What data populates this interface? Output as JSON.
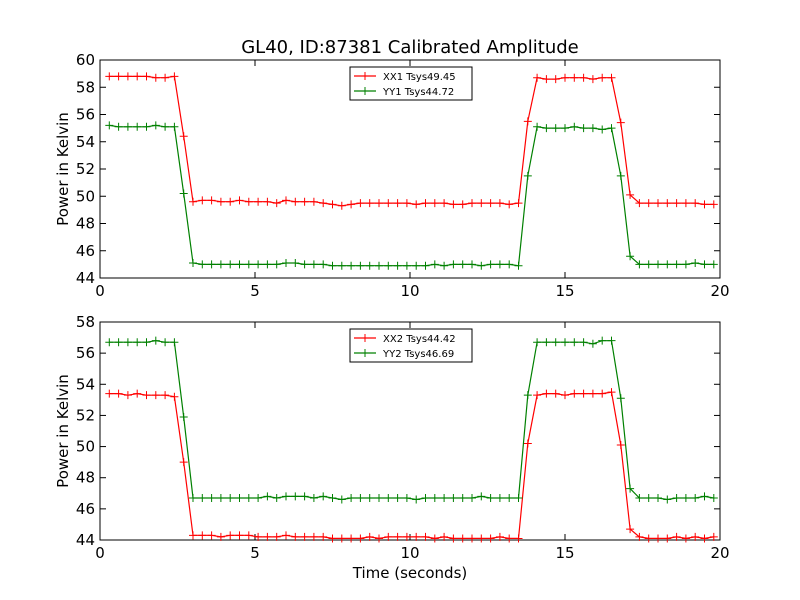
{
  "figure": {
    "title": "GL40, ID:87381 Calibrated Amplitude",
    "xlabel": "Time (seconds)"
  },
  "chart_data": [
    {
      "type": "line",
      "title": "GL40, ID:87381 Calibrated Amplitude",
      "xlabel": "",
      "ylabel": "Power in Kelvin",
      "xlim": [
        0,
        20
      ],
      "ylim": [
        44,
        60
      ],
      "xticks": [
        0,
        5,
        10,
        15,
        20
      ],
      "yticks": [
        44,
        46,
        48,
        50,
        52,
        54,
        56,
        58,
        60
      ],
      "grid": false,
      "legend_position": "top-center",
      "x": [
        0.3,
        0.6,
        0.9,
        1.2,
        1.5,
        1.8,
        2.1,
        2.4,
        2.7,
        3.0,
        3.3,
        3.6,
        3.9,
        4.2,
        4.5,
        4.8,
        5.1,
        5.4,
        5.7,
        6.0,
        6.3,
        6.6,
        6.9,
        7.2,
        7.5,
        7.8,
        8.1,
        8.4,
        8.7,
        9.0,
        9.3,
        9.6,
        9.9,
        10.2,
        10.5,
        10.8,
        11.1,
        11.4,
        11.7,
        12.0,
        12.3,
        12.6,
        12.9,
        13.2,
        13.5,
        13.8,
        14.1,
        14.4,
        14.7,
        15.0,
        15.3,
        15.6,
        15.9,
        16.2,
        16.5,
        16.8,
        17.1,
        17.4,
        17.7,
        18.0,
        18.3,
        18.6,
        18.9,
        19.2,
        19.5,
        19.8
      ],
      "series": [
        {
          "name": "XX1 Tsys49.45",
          "color": "#ff0000",
          "values": [
            58.8,
            58.8,
            58.8,
            58.8,
            58.8,
            58.7,
            58.7,
            58.8,
            54.4,
            49.6,
            49.7,
            49.7,
            49.6,
            49.6,
            49.7,
            49.6,
            49.6,
            49.6,
            49.5,
            49.7,
            49.6,
            49.6,
            49.6,
            49.5,
            49.4,
            49.3,
            49.4,
            49.5,
            49.5,
            49.5,
            49.5,
            49.5,
            49.5,
            49.4,
            49.5,
            49.5,
            49.5,
            49.4,
            49.4,
            49.5,
            49.5,
            49.5,
            49.5,
            49.4,
            49.5,
            55.5,
            58.7,
            58.6,
            58.6,
            58.7,
            58.7,
            58.7,
            58.6,
            58.7,
            58.7,
            55.4,
            50.1,
            49.5,
            49.5,
            49.5,
            49.5,
            49.5,
            49.5,
            49.5,
            49.4,
            49.4
          ]
        },
        {
          "name": "YY1 Tsys44.72",
          "color": "#008000",
          "values": [
            55.2,
            55.1,
            55.1,
            55.1,
            55.1,
            55.2,
            55.1,
            55.1,
            50.2,
            45.1,
            45.0,
            45.0,
            45.0,
            45.0,
            45.0,
            45.0,
            45.0,
            45.0,
            45.0,
            45.1,
            45.1,
            45.0,
            45.0,
            45.0,
            44.9,
            44.9,
            44.9,
            44.9,
            44.9,
            44.9,
            44.9,
            44.9,
            44.9,
            44.9,
            44.9,
            45.0,
            44.9,
            45.0,
            45.0,
            45.0,
            44.9,
            45.0,
            45.0,
            45.0,
            44.9,
            51.5,
            55.1,
            55.0,
            55.0,
            55.0,
            55.1,
            55.0,
            55.0,
            54.9,
            55.0,
            51.5,
            45.6,
            45.0,
            45.0,
            45.0,
            45.0,
            45.0,
            45.0,
            45.1,
            45.0,
            45.0
          ]
        }
      ]
    },
    {
      "type": "line",
      "title": "",
      "xlabel": "Time (seconds)",
      "ylabel": "Power in Kelvin",
      "xlim": [
        0,
        20
      ],
      "ylim": [
        44,
        58
      ],
      "xticks": [
        0,
        5,
        10,
        15,
        20
      ],
      "yticks": [
        44,
        46,
        48,
        50,
        52,
        54,
        56,
        58
      ],
      "grid": false,
      "legend_position": "top-center",
      "x": [
        0.3,
        0.6,
        0.9,
        1.2,
        1.5,
        1.8,
        2.1,
        2.4,
        2.7,
        3.0,
        3.3,
        3.6,
        3.9,
        4.2,
        4.5,
        4.8,
        5.1,
        5.4,
        5.7,
        6.0,
        6.3,
        6.6,
        6.9,
        7.2,
        7.5,
        7.8,
        8.1,
        8.4,
        8.7,
        9.0,
        9.3,
        9.6,
        9.9,
        10.2,
        10.5,
        10.8,
        11.1,
        11.4,
        11.7,
        12.0,
        12.3,
        12.6,
        12.9,
        13.2,
        13.5,
        13.8,
        14.1,
        14.4,
        14.7,
        15.0,
        15.3,
        15.6,
        15.9,
        16.2,
        16.5,
        16.8,
        17.1,
        17.4,
        17.7,
        18.0,
        18.3,
        18.6,
        18.9,
        19.2,
        19.5,
        19.8
      ],
      "series": [
        {
          "name": "XX2 Tsys44.42",
          "color": "#ff0000",
          "values": [
            53.4,
            53.4,
            53.3,
            53.4,
            53.3,
            53.3,
            53.3,
            53.2,
            49.0,
            44.3,
            44.3,
            44.3,
            44.2,
            44.3,
            44.3,
            44.3,
            44.2,
            44.2,
            44.2,
            44.3,
            44.2,
            44.2,
            44.2,
            44.2,
            44.1,
            44.1,
            44.1,
            44.1,
            44.2,
            44.1,
            44.2,
            44.2,
            44.2,
            44.2,
            44.2,
            44.1,
            44.2,
            44.1,
            44.1,
            44.1,
            44.1,
            44.1,
            44.2,
            44.1,
            44.1,
            50.2,
            53.3,
            53.4,
            53.4,
            53.3,
            53.4,
            53.4,
            53.4,
            53.4,
            53.5,
            50.1,
            44.7,
            44.2,
            44.1,
            44.1,
            44.1,
            44.2,
            44.1,
            44.2,
            44.1,
            44.2
          ]
        },
        {
          "name": "YY2 Tsys46.69",
          "color": "#008000",
          "values": [
            56.7,
            56.7,
            56.7,
            56.7,
            56.7,
            56.8,
            56.7,
            56.7,
            51.9,
            46.7,
            46.7,
            46.7,
            46.7,
            46.7,
            46.7,
            46.7,
            46.7,
            46.8,
            46.7,
            46.8,
            46.8,
            46.8,
            46.7,
            46.8,
            46.7,
            46.6,
            46.7,
            46.7,
            46.7,
            46.7,
            46.7,
            46.7,
            46.7,
            46.6,
            46.7,
            46.7,
            46.7,
            46.7,
            46.7,
            46.7,
            46.8,
            46.7,
            46.7,
            46.7,
            46.7,
            53.3,
            56.7,
            56.7,
            56.7,
            56.7,
            56.7,
            56.7,
            56.6,
            56.8,
            56.8,
            53.1,
            47.3,
            46.7,
            46.7,
            46.7,
            46.6,
            46.7,
            46.7,
            46.7,
            46.8,
            46.7
          ]
        }
      ]
    }
  ]
}
